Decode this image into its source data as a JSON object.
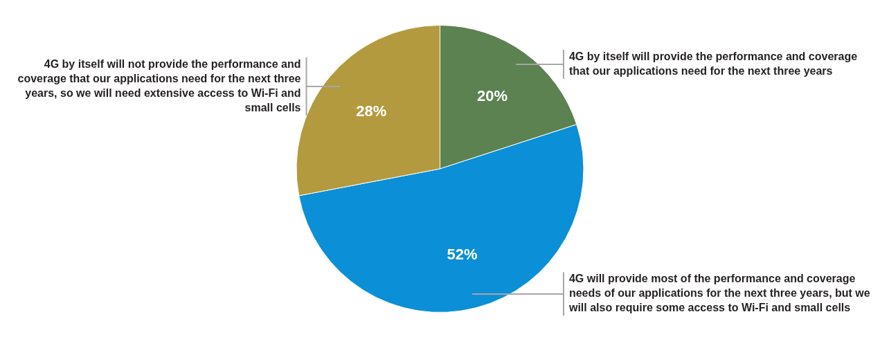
{
  "chart_data": {
    "type": "pie",
    "categories": [
      "4G by itself will provide the performance and coverage that our applications need for the next three years",
      "4G will provide most of the performance and coverage needs of our applications for the next three years, but we will also require some access to Wi-Fi and small cells",
      "4G by itself will not provide the performance and coverage that our applications need for the next three years, so we will need extensive access to Wi-Fi and small cells"
    ],
    "values": [
      20,
      52,
      28
    ],
    "colors": [
      "#5b8250",
      "#0b8fd6",
      "#b39a3e"
    ],
    "value_labels": [
      "20%",
      "52%",
      "28%"
    ],
    "legend": false
  }
}
